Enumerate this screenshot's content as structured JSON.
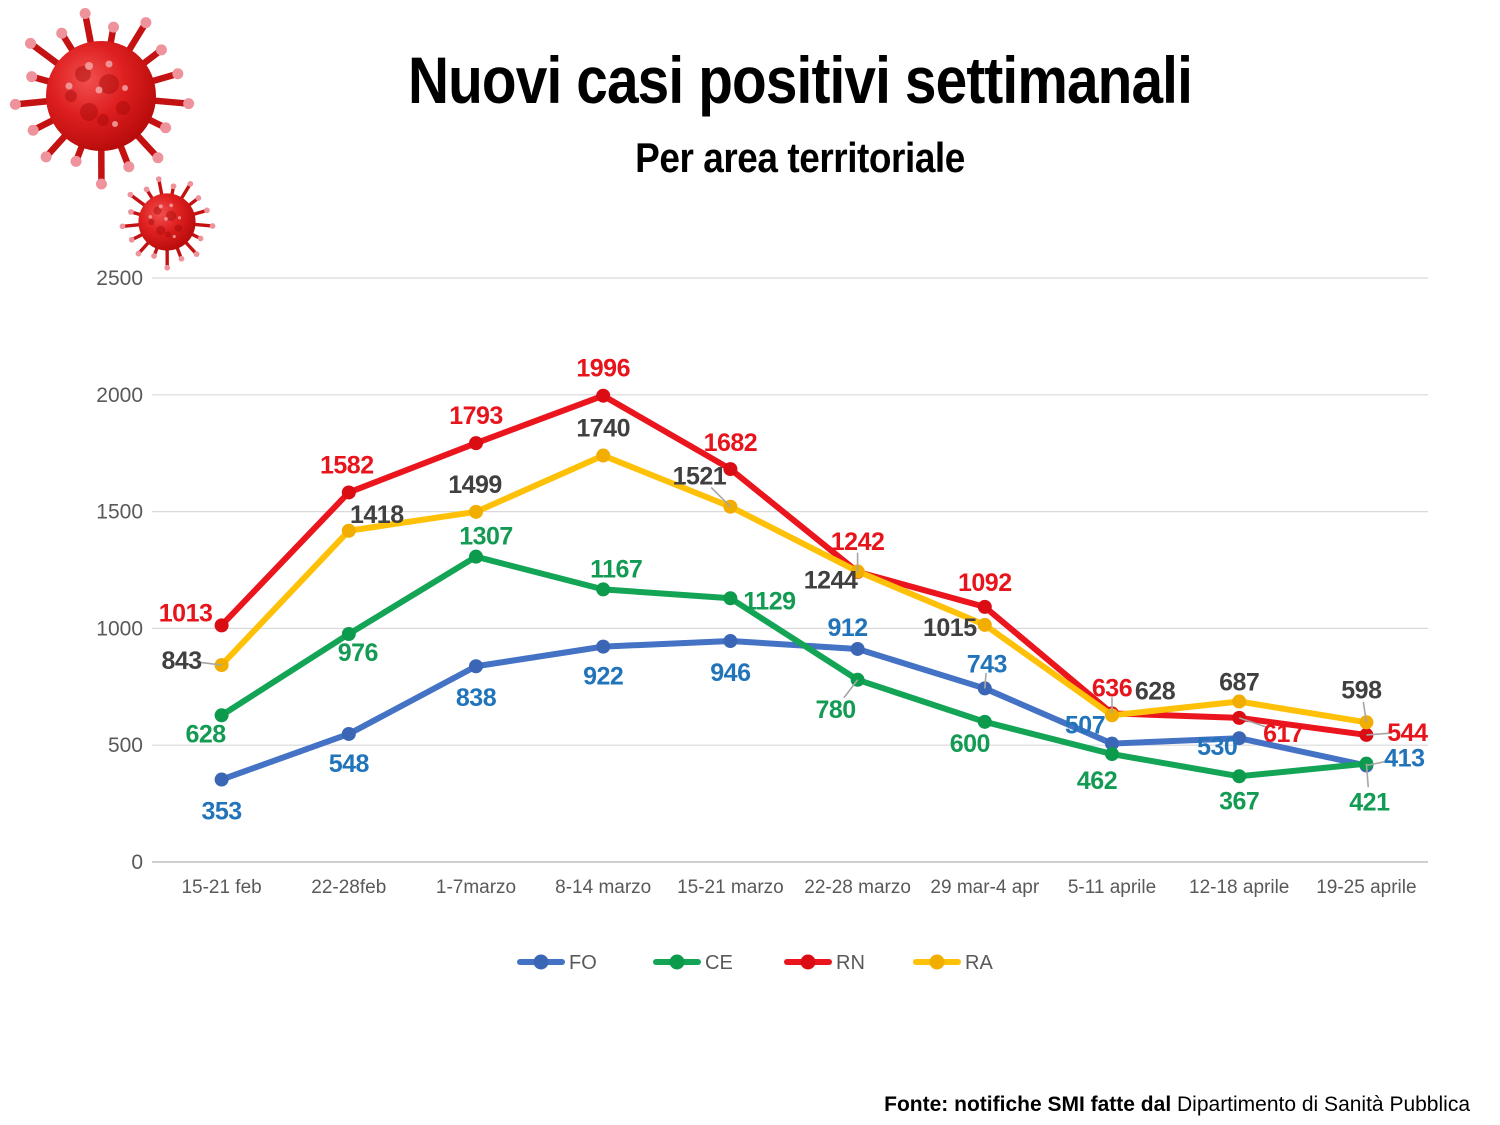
{
  "slide": {
    "title": "Nuovi casi positivi settimanali",
    "subtitle": "Per area territoriale",
    "footer_bold": "Fonte: notifiche SMI fatte dal",
    "footer_regular": "Dipartimento di Sanità Pubblica"
  },
  "chart_data": {
    "type": "line",
    "title": "Nuovi casi positivi settimanali",
    "subtitle": "Per area territoriale",
    "categories": [
      "15-21 feb",
      "22-28feb",
      "1-7marzo",
      "8-14 marzo",
      "15-21 marzo",
      "22-28 marzo",
      "29 mar-4 apr",
      "5-11 aprile",
      "12-18 aprile",
      "19-25 aprile"
    ],
    "ylim": [
      0,
      2500
    ],
    "yticks": [
      0,
      500,
      1000,
      1500,
      2000,
      2500
    ],
    "grid": true,
    "legend_position": "bottom",
    "axis_label_color": "#595959",
    "grid_color": "#D9D9D9",
    "axis_line_color": "#BFBFBF",
    "leader_line_color": "#A6A6A6",
    "series": [
      {
        "name": "FO",
        "line_color": "#4472C4",
        "marker_color": "#3A66B5",
        "label_color": "#2173BA",
        "values": [
          353,
          548,
          838,
          922,
          946,
          912,
          743,
          507,
          530,
          413
        ],
        "label_offsets": [
          [
            0,
            31
          ],
          [
            0,
            29
          ],
          [
            0,
            31
          ],
          [
            0,
            29
          ],
          [
            0,
            31
          ],
          [
            -10,
            -22
          ],
          [
            2,
            -25,
            1
          ],
          [
            -27,
            -19
          ],
          [
            -22,
            8
          ],
          [
            38,
            -8,
            1
          ]
        ]
      },
      {
        "name": "CE",
        "line_color": "#13A456",
        "marker_color": "#0C9A4D",
        "label_color": "#139B53",
        "values": [
          628,
          976,
          1307,
          1167,
          1129,
          780,
          600,
          462,
          367,
          421
        ],
        "label_offsets": [
          [
            -16,
            18
          ],
          [
            9,
            18
          ],
          [
            10,
            -21
          ],
          [
            13,
            -21
          ],
          [
            39,
            2
          ],
          [
            -22,
            29,
            1
          ],
          [
            -15,
            21
          ],
          [
            -15,
            26
          ],
          [
            0,
            24
          ],
          [
            3,
            38,
            1
          ]
        ]
      },
      {
        "name": "RN",
        "line_color": "#EA151D",
        "marker_color": "#DA0D15",
        "label_color": "#E8141C",
        "values": [
          1013,
          1582,
          1793,
          1996,
          1682,
          1242,
          1092,
          636,
          617,
          544
        ],
        "label_offsets": [
          [
            -36,
            -13
          ],
          [
            -2,
            -28
          ],
          [
            0,
            -28
          ],
          [
            0,
            -28
          ],
          [
            0,
            -27
          ],
          [
            0,
            -31,
            1
          ],
          [
            0,
            -25
          ],
          [
            0,
            -26,
            1
          ],
          [
            44,
            15,
            1
          ],
          [
            41,
            -3,
            1
          ]
        ]
      },
      {
        "name": "RA",
        "line_color": "#FFC008",
        "marker_color": "#F1AD00",
        "label_color": "#404040",
        "values": [
          843,
          1418,
          1499,
          1740,
          1521,
          1244,
          1015,
          628,
          687,
          598
        ],
        "label_offsets": [
          [
            -40,
            -5,
            1
          ],
          [
            28,
            -17
          ],
          [
            -1,
            -28
          ],
          [
            0,
            -28
          ],
          [
            -31,
            -31,
            1
          ],
          [
            -27,
            8
          ],
          [
            -35,
            2
          ],
          [
            43,
            -25
          ],
          [
            0,
            -20
          ],
          [
            -5,
            -33,
            1
          ]
        ]
      }
    ]
  }
}
